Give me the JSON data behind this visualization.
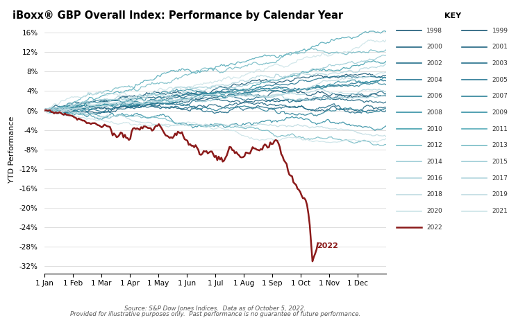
{
  "title": "iBoxx® GBP Overall Index: Performance by Calendar Year",
  "ylabel": "YTD Performance",
  "source_line1": "Source: S&P Dow Jones Indices.  Data as of October 5, 2022.",
  "source_line2": "Provided for illustrative purposes only.  Past performance is no guarantee of future performance.",
  "yticks": [
    -0.32,
    -0.28,
    -0.24,
    -0.2,
    -0.16,
    -0.12,
    -0.08,
    -0.04,
    0.0,
    0.04,
    0.08,
    0.12,
    0.16
  ],
  "xtick_labels": [
    "1 Jan",
    "1 Feb",
    "1 Mar",
    "1 Apr",
    "1 May",
    "1 Jun",
    "1 Jul",
    "1 Aug",
    "1 Sep",
    "1 Oct",
    "1 Nov",
    "1 Dec"
  ],
  "annotation_2022": "2022",
  "key_title": "KEY",
  "years": [
    1998,
    1999,
    2000,
    2001,
    2002,
    2003,
    2004,
    2005,
    2006,
    2007,
    2008,
    2009,
    2010,
    2011,
    2012,
    2013,
    2014,
    2015,
    2016,
    2017,
    2018,
    2019,
    2020,
    2021
  ],
  "color_2022": "#8b1a1a",
  "background_color": "#ffffff",
  "grid_color": "#d0d0d0",
  "year_colors": {
    "1998": "#1a5976",
    "1999": "#1a5976",
    "2000": "#1e6480",
    "2001": "#1e6480",
    "2002": "#226e8a",
    "2003": "#226e8a",
    "2004": "#287894",
    "2005": "#287894",
    "2006": "#2e8298",
    "2007": "#2e8298",
    "2008": "#3490a4",
    "2009": "#3490a4",
    "2010": "#409eac",
    "2011": "#54aab8",
    "2012": "#78bcc6",
    "2013": "#78bcc6",
    "2014": "#9cccd6",
    "2015": "#9cccd6",
    "2016": "#b2d6de",
    "2017": "#b2d6de",
    "2018": "#c0dce2",
    "2019": "#c0dce2",
    "2020": "#cce4e8",
    "2021": "#cce4e8"
  },
  "year_params": {
    "1998": [
      0.06,
      0.025,
      10
    ],
    "1999": [
      0.04,
      0.025,
      11
    ],
    "2000": [
      0.07,
      0.025,
      12
    ],
    "2001": [
      0.05,
      0.025,
      13
    ],
    "2002": [
      0.08,
      0.025,
      14
    ],
    "2003": [
      0.05,
      0.025,
      15
    ],
    "2004": [
      0.05,
      0.02,
      16
    ],
    "2005": [
      0.04,
      0.02,
      17
    ],
    "2006": [
      0.02,
      0.02,
      18
    ],
    "2007": [
      0.03,
      0.025,
      19
    ],
    "2008": [
      -0.04,
      0.03,
      20
    ],
    "2009": [
      0.06,
      0.025,
      21
    ],
    "2010": [
      0.07,
      0.02,
      22
    ],
    "2011": [
      0.16,
      0.03,
      23
    ],
    "2012": [
      0.12,
      0.03,
      24
    ],
    "2013": [
      -0.05,
      0.02,
      25
    ],
    "2014": [
      0.11,
      0.02,
      26
    ],
    "2015": [
      0.01,
      0.02,
      27
    ],
    "2016": [
      0.1,
      0.025,
      28
    ],
    "2017": [
      0.05,
      0.02,
      29
    ],
    "2018": [
      -0.04,
      0.02,
      30
    ],
    "2019": [
      0.1,
      0.02,
      31
    ],
    "2020": [
      0.09,
      0.03,
      32
    ],
    "2021": [
      -0.05,
      0.02,
      33
    ]
  }
}
